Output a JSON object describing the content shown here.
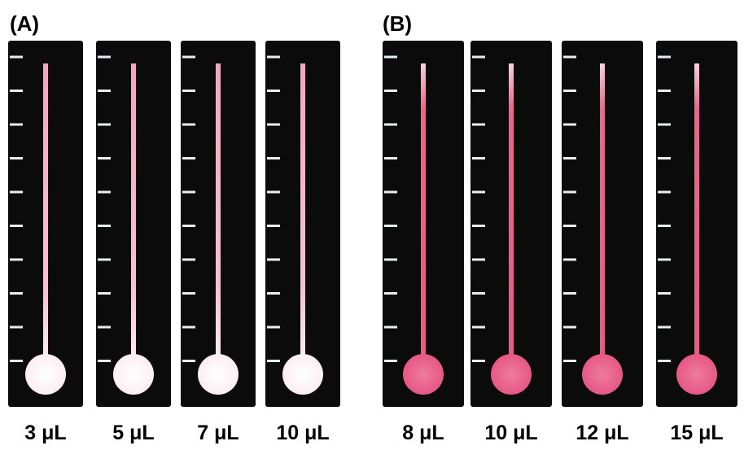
{
  "panels": [
    {
      "label": "(A)",
      "strips": [
        {
          "label": "3 μL"
        },
        {
          "label": "5 μL"
        },
        {
          "label": "7 μL"
        },
        {
          "label": "10 μL"
        }
      ]
    },
    {
      "label": "(B)",
      "strips": [
        {
          "label": "8 μL"
        },
        {
          "label": "10 μL"
        },
        {
          "label": "12 μL"
        },
        {
          "label": "15 μL"
        }
      ]
    }
  ]
}
